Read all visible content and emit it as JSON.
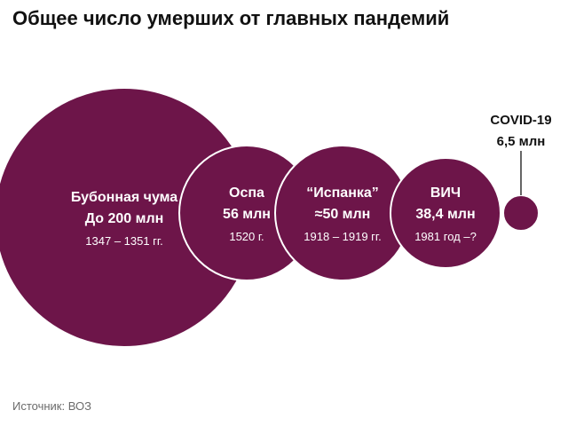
{
  "title": "Общее число умерших от главных пандемий",
  "source": "Источник: ВОЗ",
  "chart_data": {
    "type": "bubble",
    "title": "Общее число умерших от главных пандемий",
    "unit": "млн",
    "color": "#6d1549",
    "series": [
      {
        "name": "Бубонная чума",
        "value": 200,
        "value_label": "До 200 млн",
        "period": "1347 – 1351 гг."
      },
      {
        "name": "Оспа",
        "value": 56,
        "value_label": "56 млн",
        "period": "1520 г."
      },
      {
        "name": "“Испанка”",
        "value": 50,
        "value_label": "≈50 млн",
        "period": "1918 – 1919 гг."
      },
      {
        "name": "ВИЧ",
        "value": 38.4,
        "value_label": "38,4 млн",
        "period": "1981 год –?"
      },
      {
        "name": "COVID-19",
        "value": 6.5,
        "value_label": "6,5 млн",
        "period": ""
      }
    ]
  }
}
